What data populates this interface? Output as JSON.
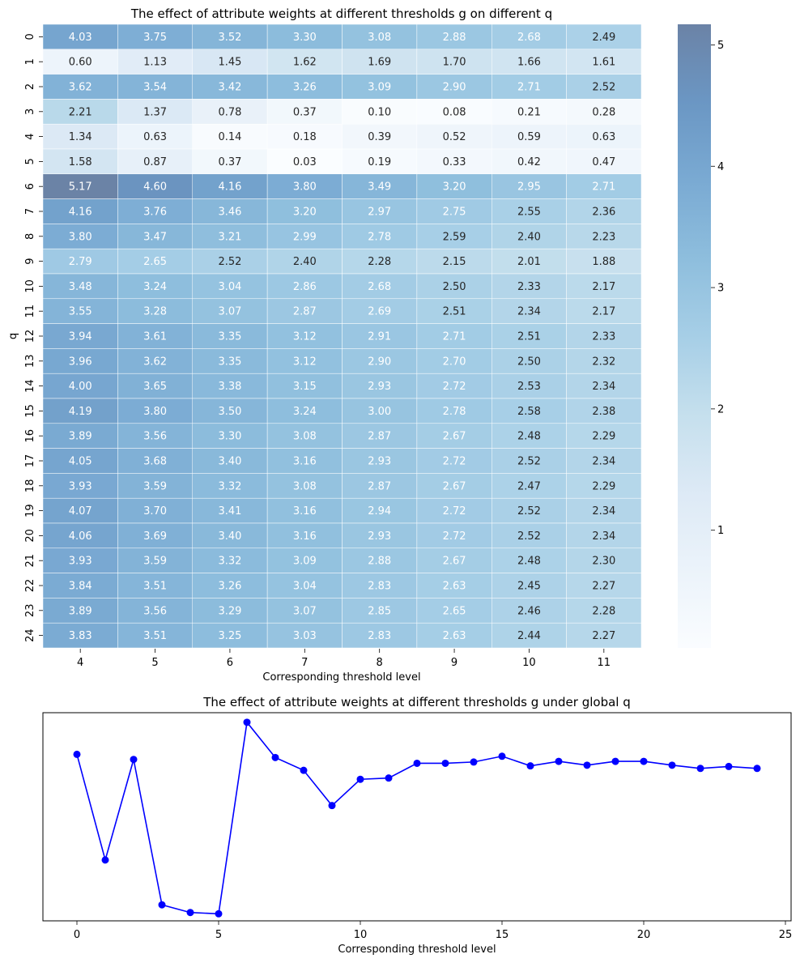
{
  "chart_data": [
    {
      "type": "heatmap",
      "title": "The effect of attribute weights at different thresholds g on different q",
      "xlabel": "Corresponding threshold level",
      "ylabel": "q",
      "x_categories": [
        "4",
        "5",
        "6",
        "7",
        "8",
        "9",
        "10",
        "11"
      ],
      "y_categories": [
        "0",
        "1",
        "2",
        "3",
        "4",
        "5",
        "6",
        "7",
        "8",
        "9",
        "10",
        "11",
        "12",
        "13",
        "14",
        "15",
        "16",
        "17",
        "18",
        "19",
        "20",
        "21",
        "22",
        "23",
        "24"
      ],
      "values": [
        [
          4.03,
          3.75,
          3.52,
          3.3,
          3.08,
          2.88,
          2.68,
          2.49
        ],
        [
          0.6,
          1.13,
          1.45,
          1.62,
          1.69,
          1.7,
          1.66,
          1.61
        ],
        [
          3.62,
          3.54,
          3.42,
          3.26,
          3.09,
          2.9,
          2.71,
          2.52
        ],
        [
          2.21,
          1.37,
          0.78,
          0.37,
          0.1,
          0.08,
          0.21,
          0.28
        ],
        [
          1.34,
          0.63,
          0.14,
          0.18,
          0.39,
          0.52,
          0.59,
          0.63
        ],
        [
          1.58,
          0.87,
          0.37,
          0.03,
          0.19,
          0.33,
          0.42,
          0.47
        ],
        [
          5.17,
          4.6,
          4.16,
          3.8,
          3.49,
          3.2,
          2.95,
          2.71
        ],
        [
          4.16,
          3.76,
          3.46,
          3.2,
          2.97,
          2.75,
          2.55,
          2.36
        ],
        [
          3.8,
          3.47,
          3.21,
          2.99,
          2.78,
          2.59,
          2.4,
          2.23
        ],
        [
          2.79,
          2.65,
          2.52,
          2.4,
          2.28,
          2.15,
          2.01,
          1.88
        ],
        [
          3.48,
          3.24,
          3.04,
          2.86,
          2.68,
          2.5,
          2.33,
          2.17
        ],
        [
          3.55,
          3.28,
          3.07,
          2.87,
          2.69,
          2.51,
          2.34,
          2.17
        ],
        [
          3.94,
          3.61,
          3.35,
          3.12,
          2.91,
          2.71,
          2.51,
          2.33
        ],
        [
          3.96,
          3.62,
          3.35,
          3.12,
          2.9,
          2.7,
          2.5,
          2.32
        ],
        [
          4.0,
          3.65,
          3.38,
          3.15,
          2.93,
          2.72,
          2.53,
          2.34
        ],
        [
          4.19,
          3.8,
          3.5,
          3.24,
          3.0,
          2.78,
          2.58,
          2.38
        ],
        [
          3.89,
          3.56,
          3.3,
          3.08,
          2.87,
          2.67,
          2.48,
          2.29
        ],
        [
          4.05,
          3.68,
          3.4,
          3.16,
          2.93,
          2.72,
          2.52,
          2.34
        ],
        [
          3.93,
          3.59,
          3.32,
          3.08,
          2.87,
          2.67,
          2.47,
          2.29
        ],
        [
          4.07,
          3.7,
          3.41,
          3.16,
          2.94,
          2.72,
          2.52,
          2.34
        ],
        [
          4.06,
          3.69,
          3.4,
          3.16,
          2.93,
          2.72,
          2.52,
          2.34
        ],
        [
          3.93,
          3.59,
          3.32,
          3.09,
          2.88,
          2.67,
          2.48,
          2.3
        ],
        [
          3.84,
          3.51,
          3.26,
          3.04,
          2.83,
          2.63,
          2.45,
          2.27
        ],
        [
          3.89,
          3.56,
          3.29,
          3.07,
          2.85,
          2.65,
          2.46,
          2.28
        ],
        [
          3.83,
          3.51,
          3.25,
          3.03,
          2.83,
          2.63,
          2.44,
          2.27
        ]
      ],
      "colorbar": {
        "ticks": [
          "1",
          "2",
          "3",
          "4",
          "5"
        ],
        "range": [
          0.03,
          5.17
        ],
        "colormap": "Blues",
        "alpha": 0.6
      },
      "grid": false
    },
    {
      "type": "line",
      "title": "The effect of attribute weights at different thresholds g under global q",
      "xlabel": "Corresponding threshold level",
      "ylabel": "",
      "x": [
        0,
        1,
        2,
        3,
        4,
        5,
        6,
        7,
        8,
        9,
        10,
        11,
        12,
        13,
        14,
        15,
        16,
        17,
        18,
        19,
        20,
        21,
        22,
        23,
        24
      ],
      "y": [
        2.6,
        0.95,
        2.52,
        0.25,
        0.13,
        0.11,
        3.1,
        2.55,
        2.35,
        1.8,
        2.21,
        2.23,
        2.46,
        2.46,
        2.48,
        2.57,
        2.42,
        2.49,
        2.43,
        2.49,
        2.49,
        2.43,
        2.38,
        2.41,
        2.38
      ],
      "xlim": [
        -1.2,
        25.2
      ],
      "ylim": [
        0.0,
        3.25
      ],
      "xticks": [
        "0",
        "5",
        "10",
        "15",
        "20",
        "25"
      ],
      "y_axis_labels_shown": false,
      "color": "#0000ff",
      "marker": "circle",
      "grid": false
    }
  ]
}
